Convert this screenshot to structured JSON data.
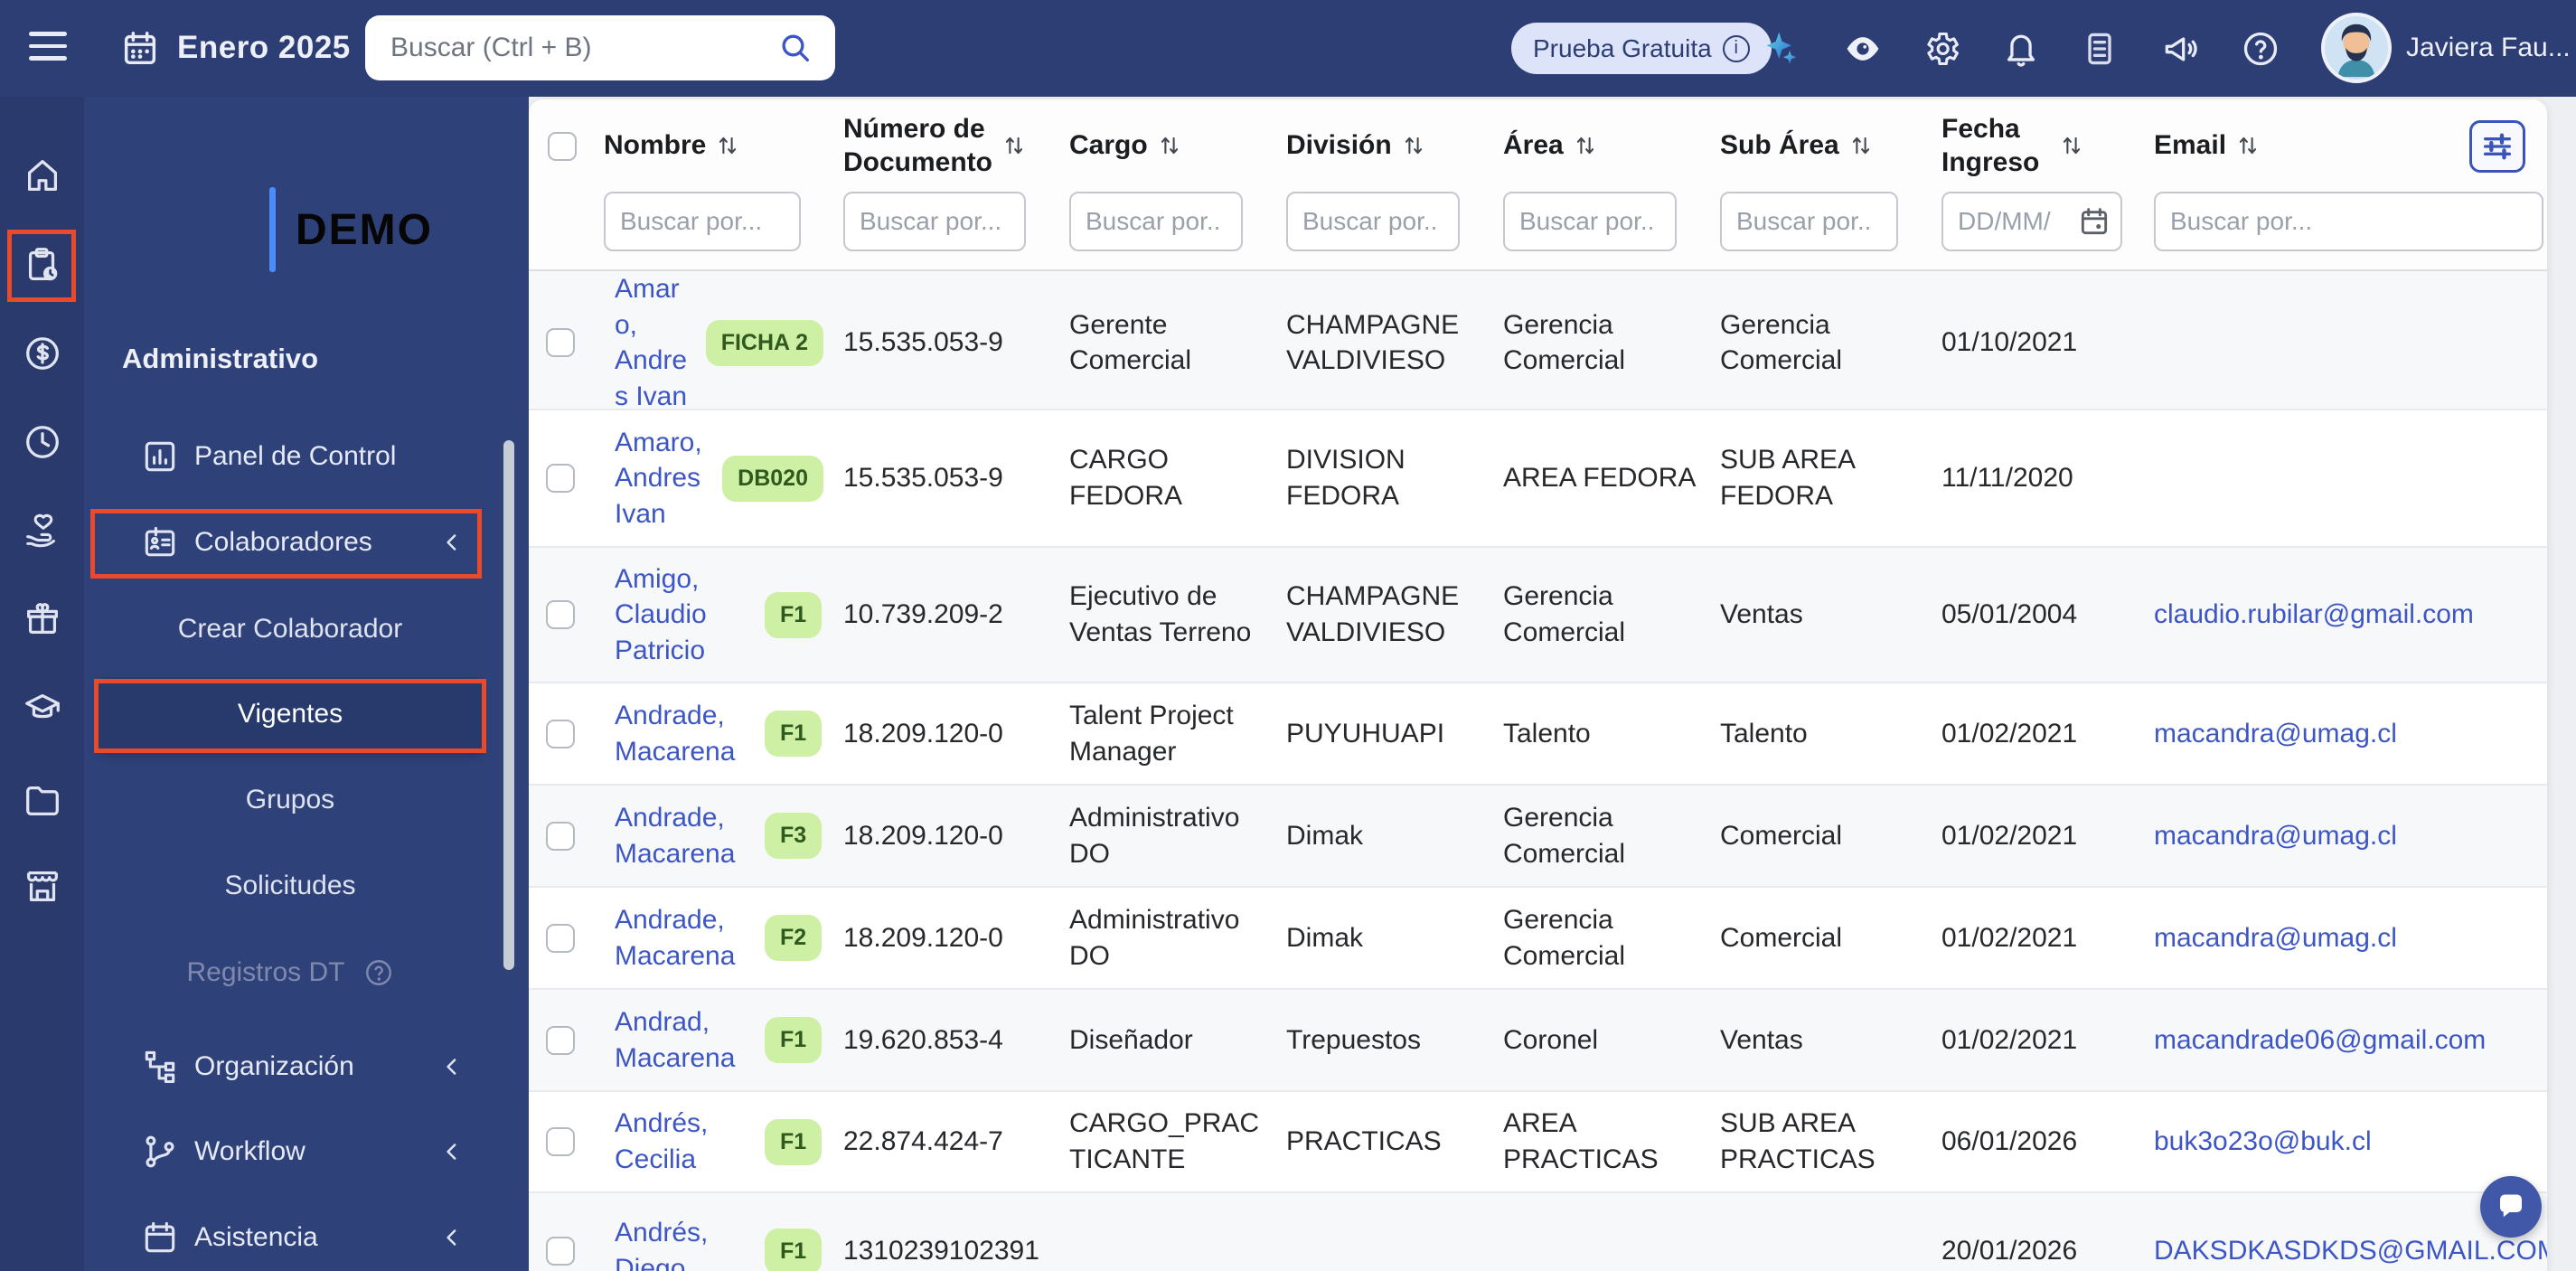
{
  "topbar": {
    "month_label": "Enero 2025",
    "search_placeholder": "Buscar (Ctrl + B)",
    "trial_badge": "Prueba Gratuita",
    "user_name": "Javiera Fau..."
  },
  "sidebar": {
    "logo": "DEMO",
    "section": "Administrativo",
    "items": [
      {
        "label": "Panel de Control"
      },
      {
        "label": "Colaboradores"
      },
      {
        "label": "Crear Colaborador"
      },
      {
        "label": "Vigentes"
      },
      {
        "label": "Grupos"
      },
      {
        "label": "Solicitudes"
      },
      {
        "label": "Registros DT"
      },
      {
        "label": "Organización"
      },
      {
        "label": "Workflow"
      },
      {
        "label": "Asistencia"
      }
    ]
  },
  "table": {
    "columns": [
      {
        "label": "Nombre",
        "filter_placeholder": "Buscar por..."
      },
      {
        "label": "Número de Documento",
        "filter_placeholder": "Buscar por..."
      },
      {
        "label": "Cargo",
        "filter_placeholder": "Buscar por.."
      },
      {
        "label": "División",
        "filter_placeholder": "Buscar por.."
      },
      {
        "label": "Área",
        "filter_placeholder": "Buscar por.."
      },
      {
        "label": "Sub Área",
        "filter_placeholder": "Buscar por.."
      },
      {
        "label": "Fecha Ingreso",
        "filter_placeholder": "DD/MM/"
      },
      {
        "label": "Email",
        "filter_placeholder": "Buscar por..."
      }
    ],
    "rows": [
      {
        "name": "Amaro, Andres Ivan",
        "badge": "FICHA 2",
        "document": "15.535.053-9",
        "cargo": "Gerente Comercial",
        "division": "CHAMPAGNE VALDIVIESO",
        "area": "Gerencia Comercial",
        "sub_area": "Gerencia Comercial",
        "fecha": "01/10/2021",
        "email": ""
      },
      {
        "name": "Amaro, Andres Ivan",
        "badge": "DB020",
        "document": "15.535.053-9",
        "cargo": "CARGO FEDORA",
        "division": "DIVISION FEDORA",
        "area": "AREA FEDORA",
        "sub_area": "SUB AREA FEDORA",
        "fecha": "11/11/2020",
        "email": ""
      },
      {
        "name": "Amigo, Claudio Patricio",
        "badge": "F1",
        "document": "10.739.209-2",
        "cargo": "Ejecutivo de Ventas Terreno",
        "division": "CHAMPAGNE VALDIVIESO",
        "area": "Gerencia Comercial",
        "sub_area": "Ventas",
        "fecha": "05/01/2004",
        "email": "claudio.rubilar@gmail.com"
      },
      {
        "name": "Andrade, Macarena",
        "badge": "F1",
        "document": "18.209.120-0",
        "cargo": "Talent Project Manager",
        "division": "PUYUHUAPI",
        "area": "Talento",
        "sub_area": "Talento",
        "fecha": "01/02/2021",
        "email": "macandra@umag.cl"
      },
      {
        "name": "Andrade, Macarena",
        "badge": "F3",
        "document": "18.209.120-0",
        "cargo": "Administrativo DO",
        "division": "Dimak",
        "area": "Gerencia Comercial",
        "sub_area": "Comercial",
        "fecha": "01/02/2021",
        "email": "macandra@umag.cl"
      },
      {
        "name": "Andrade, Macarena",
        "badge": "F2",
        "document": "18.209.120-0",
        "cargo": "Administrativo DO",
        "division": "Dimak",
        "area": "Gerencia Comercial",
        "sub_area": "Comercial",
        "fecha": "01/02/2021",
        "email": "macandra@umag.cl"
      },
      {
        "name": "Andrad, Macarena",
        "badge": "F1",
        "document": "19.620.853-4",
        "cargo": "Diseñador",
        "division": "Trepuestos",
        "area": "Coronel",
        "sub_area": "Ventas",
        "fecha": "01/02/2021",
        "email": "macandrade06@gmail.com"
      },
      {
        "name": "Andrés, Cecilia",
        "badge": "F1",
        "document": "22.874.424-7",
        "cargo": "CARGO_PRACTICANTE",
        "division": "PRACTICAS",
        "area": "AREA PRACTICAS",
        "sub_area": "SUB AREA PRACTICAS",
        "fecha": "06/01/2026",
        "email": "buk3o23o@buk.cl"
      },
      {
        "name": "Andrés, Diego",
        "badge": "F1",
        "document": "1310239102391",
        "cargo": "",
        "division": "",
        "area": "",
        "sub_area": "",
        "fecha": "20/01/2026",
        "email": "DAKSDKASDKDS@GMAIL.COM"
      }
    ]
  },
  "colors": {
    "navbar": "#2d3e75",
    "sidebar_panel": "#2f4179",
    "sidebar_rail": "#2b3a6c",
    "annotation_red": "#e84a2b",
    "badge_bg": "#cdf0a5",
    "badge_text": "#30591d",
    "link_blue": "#3d56c5",
    "trial_pill_bg": "#dde3f8",
    "logo_accent": "#4b8df8",
    "chat_bubble": "#4157a8"
  }
}
